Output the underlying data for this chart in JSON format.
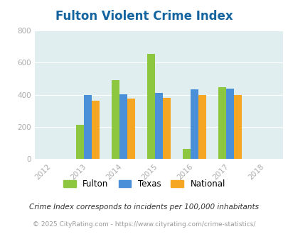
{
  "title": "Fulton Violent Crime Index",
  "years": [
    2012,
    2013,
    2014,
    2015,
    2016,
    2017,
    2018
  ],
  "data_years": [
    2013,
    2014,
    2015,
    2016,
    2017
  ],
  "fulton": [
    215,
    490,
    655,
    65,
    445
  ],
  "texas": [
    400,
    405,
    410,
    435,
    440
  ],
  "national": [
    365,
    375,
    380,
    398,
    398
  ],
  "fulton_color": "#8DC63F",
  "texas_color": "#4A90D9",
  "national_color": "#F5A623",
  "bg_color": "#E0EEF0",
  "ylim": [
    0,
    800
  ],
  "yticks": [
    0,
    200,
    400,
    600,
    800
  ],
  "bar_width": 0.22,
  "legend_labels": [
    "Fulton",
    "Texas",
    "National"
  ],
  "footnote1": "Crime Index corresponds to incidents per 100,000 inhabitants",
  "footnote2": "© 2025 CityRating.com - https://www.cityrating.com/crime-statistics/",
  "title_color": "#1464A0",
  "footnote1_color": "#333333",
  "footnote2_color": "#999999",
  "tick_color": "#aaaaaa"
}
